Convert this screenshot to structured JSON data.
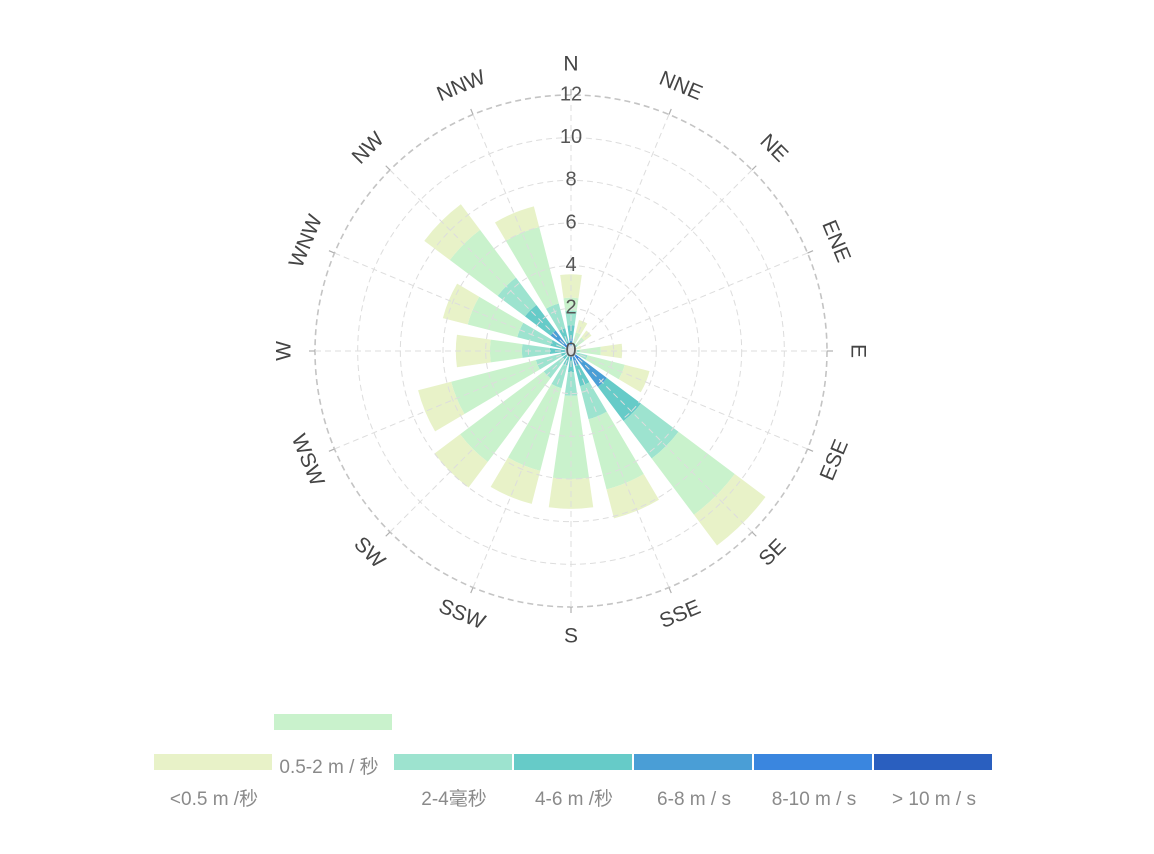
{
  "chart_data": {
    "type": "polar-stacked-bar",
    "title": "",
    "directions": [
      "N",
      "NNE",
      "NE",
      "ENE",
      "E",
      "ESE",
      "SE",
      "SSE",
      "S",
      "SSW",
      "SW",
      "WSW",
      "W",
      "WNW",
      "NW",
      "NNW"
    ],
    "radial_ticks": [
      "0",
      "2",
      "4",
      "6",
      "8",
      "10",
      "12"
    ],
    "rmax": 12,
    "series": [
      {
        "name": "> 10 m / s",
        "color": "#2a5fbf",
        "values": [
          0.1,
          0,
          0,
          0,
          0,
          0,
          0.1,
          0,
          0,
          0,
          0,
          0,
          0,
          0,
          0.1,
          0
        ]
      },
      {
        "name": "8-10 m / s",
        "color": "#3a86df",
        "values": [
          0.2,
          0,
          0,
          0,
          0,
          0,
          0.5,
          0.2,
          0.1,
          0,
          0,
          0,
          0.1,
          0,
          0.3,
          0.1
        ]
      },
      {
        "name": "6-8 m / s",
        "color": "#4a9ed6",
        "values": [
          0.3,
          0,
          0,
          0,
          0,
          0.1,
          1.5,
          0.5,
          0.3,
          0.2,
          0.1,
          0.1,
          0.2,
          0.2,
          0.8,
          0.3
        ]
      },
      {
        "name": "4-6 m /秒",
        "color": "#66cbc8",
        "values": [
          0.6,
          0.1,
          0.1,
          0,
          0.1,
          0.2,
          2.0,
          1.0,
          0.6,
          0.5,
          0.4,
          0.4,
          0.7,
          0.8,
          1.5,
          0.7
        ]
      },
      {
        "name": "2-4毫秒",
        "color": "#9de3cf",
        "values": [
          0.7,
          0.3,
          0.3,
          0.1,
          0.3,
          0.5,
          2.2,
          1.6,
          1.1,
          1.1,
          1.1,
          1.2,
          1.3,
          1.6,
          1.6,
          1.2
        ]
      },
      {
        "name": "0.5-2 m / 秒",
        "color": "#c9f2cc",
        "values": [
          0.6,
          0.5,
          0.4,
          0.2,
          1.0,
          1.8,
          3.3,
          3.4,
          3.9,
          4.0,
          4.9,
          4.1,
          1.5,
          2.4,
          2.8,
          3.7
        ]
      },
      {
        "name": "<0.5 m /秒",
        "color": "#e8f2c8",
        "values": [
          1.1,
          0.6,
          0.4,
          0.2,
          1.0,
          1.2,
          1.8,
          1.4,
          1.4,
          1.6,
          1.5,
          1.6,
          1.6,
          1.2,
          1.5,
          1.0
        ]
      }
    ],
    "legend_position": "bottom",
    "grid": true
  }
}
